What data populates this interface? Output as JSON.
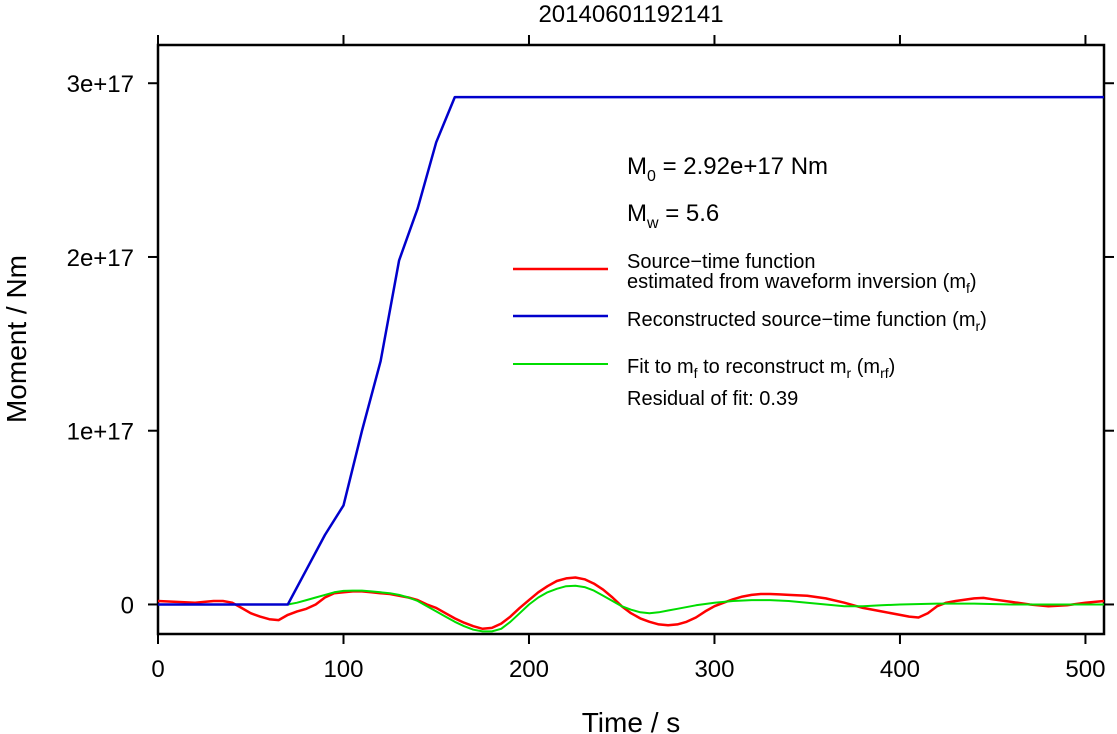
{
  "chart_data": {
    "type": "line",
    "title": "20140601192141",
    "xlabel": "Time / s",
    "ylabel": "Moment / Nm",
    "xlim": [
      0,
      510
    ],
    "ylim": [
      -1.7e+16,
      3.22e+17
    ],
    "x_ticks": [
      0,
      100,
      200,
      300,
      400,
      500
    ],
    "x_tick_labels": [
      "0",
      "100",
      "200",
      "300",
      "400",
      "500"
    ],
    "y_ticks": [
      0,
      1e+17,
      2e+17,
      3e+17
    ],
    "y_tick_labels": [
      "0",
      "1e+17",
      "2e+17",
      "3e+17"
    ],
    "grid": false,
    "legend_position": "right",
    "annotations": {
      "m0": {
        "sym": "M",
        "sub": "0",
        "text": " = 2.92e+17 Nm"
      },
      "mw": {
        "sym": "M",
        "sub": "w",
        "text": " = 5.6"
      },
      "residual": "Residual of fit: 0.39"
    },
    "series": [
      {
        "name": "Source−time function estimated from waveform inversion (m_f)",
        "legend_line1": "Source−time function",
        "legend_line2_pre": "estimated from waveform inversion (m",
        "legend_line2_sub": "f",
        "legend_line2_post": ")",
        "color": "#ff0000",
        "x": [
          0,
          10,
          20,
          30,
          35,
          40,
          45,
          50,
          55,
          60,
          65,
          70,
          75,
          80,
          85,
          90,
          95,
          100,
          105,
          110,
          115,
          120,
          125,
          130,
          135,
          140,
          145,
          150,
          155,
          160,
          165,
          170,
          175,
          180,
          185,
          190,
          195,
          200,
          205,
          210,
          215,
          220,
          225,
          230,
          235,
          240,
          245,
          250,
          255,
          260,
          265,
          270,
          275,
          280,
          285,
          290,
          295,
          300,
          305,
          310,
          315,
          320,
          325,
          330,
          335,
          340,
          350,
          360,
          370,
          380,
          390,
          400,
          405,
          410,
          415,
          420,
          425,
          430,
          440,
          445,
          450,
          460,
          470,
          480,
          490,
          500,
          510
        ],
        "values": [
          2000000000000000.0,
          1500000000000000.0,
          1000000000000000.0,
          2000000000000000.0,
          2000000000000000.0,
          1000000000000000.0,
          -2000000000000000.0,
          -5000000000000000.0,
          -7000000000000000.0,
          -8500000000000000.0,
          -9000000000000000.0,
          -6000000000000000.0,
          -4000000000000000.0,
          -2500000000000000.0,
          0,
          4000000000000000.0,
          6500000000000000.0,
          7000000000000000.0,
          7500000000000000.0,
          7500000000000000.0,
          7000000000000000.0,
          6500000000000000.0,
          6000000000000000.0,
          5000000000000000.0,
          4000000000000000.0,
          2500000000000000.0,
          0,
          -2000000000000000.0,
          -5000000000000000.0,
          -8000000000000000.0,
          -1.05e+16,
          -1.25e+16,
          -1.4e+16,
          -1.35e+16,
          -1.1e+16,
          -7000000000000000.0,
          -2000000000000000.0,
          2500000000000000.0,
          7000000000000000.0,
          1.05e+16,
          1.35e+16,
          1.5e+16,
          1.55e+16,
          1.45e+16,
          1.2e+16,
          8500000000000000.0,
          4000000000000000.0,
          -1000000000000000.0,
          -5000000000000000.0,
          -8000000000000000.0,
          -1e+16,
          -1.15e+16,
          -1.2e+16,
          -1.15e+16,
          -1e+16,
          -7500000000000000.0,
          -4000000000000000.0,
          -1000000000000000.0,
          1000000000000000.0,
          3000000000000000.0,
          4500000000000000.0,
          5500000000000000.0,
          6000000000000000.0,
          6000000000000000.0,
          5800000000000000.0,
          5500000000000000.0,
          5000000000000000.0,
          3500000000000000.0,
          1000000000000000.0,
          -2000000000000000.0,
          -4000000000000000.0,
          -6000000000000000.0,
          -7000000000000000.0,
          -7500000000000000.0,
          -5000000000000000.0,
          -1000000000000000.0,
          1000000000000000.0,
          2000000000000000.0,
          3500000000000000.0,
          3800000000000000.0,
          3000000000000000.0,
          1500000000000000.0,
          0,
          -1000000000000000.0,
          -500000000000000.0,
          1000000000000000.0,
          2000000000000000.0
        ]
      },
      {
        "name": "Reconstructed source−time function (m_r)",
        "legend_pre": "Reconstructed source−time function (m",
        "legend_sub": "r",
        "legend_post": ")",
        "color": "#0000cc",
        "x": [
          0,
          70,
          80,
          90,
          100,
          110,
          120,
          130,
          140,
          150,
          160,
          510
        ],
        "values": [
          0,
          0,
          2e+16,
          4e+16,
          5.7e+16,
          1e+17,
          1.4e+17,
          1.98e+17,
          2.28e+17,
          2.66e+17,
          2.92e+17,
          2.92e+17
        ]
      },
      {
        "name": "Fit to m_f to reconstruct m_r (m_rf)",
        "legend_pre": "Fit to m",
        "legend_sub1": "f",
        "legend_mid": " to reconstruct m",
        "legend_sub2": "r",
        "legend_mid2": " (m",
        "legend_sub3": "rf",
        "legend_post": ")",
        "color": "#00dd00",
        "x": [
          0,
          70,
          75,
          80,
          85,
          90,
          95,
          100,
          105,
          110,
          115,
          120,
          125,
          130,
          135,
          140,
          145,
          150,
          155,
          160,
          165,
          170,
          175,
          180,
          185,
          190,
          195,
          200,
          205,
          210,
          215,
          220,
          225,
          230,
          235,
          240,
          245,
          250,
          255,
          260,
          265,
          270,
          275,
          280,
          290,
          300,
          310,
          320,
          330,
          340,
          350,
          360,
          370,
          380,
          390,
          400,
          420,
          440,
          460,
          480,
          500,
          510
        ],
        "values": [
          0,
          0,
          1000000000000000.0,
          2500000000000000.0,
          4000000000000000.0,
          5500000000000000.0,
          7000000000000000.0,
          7800000000000000.0,
          8000000000000000.0,
          8000000000000000.0,
          7500000000000000.0,
          7000000000000000.0,
          6500000000000000.0,
          5500000000000000.0,
          4000000000000000.0,
          2000000000000000.0,
          -1000000000000000.0,
          -4000000000000000.0,
          -7000000000000000.0,
          -1e+16,
          -1.25e+16,
          -1.45e+16,
          -1.55e+16,
          -1.55e+16,
          -1.4e+16,
          -1e+16,
          -5000000000000000.0,
          0,
          4000000000000000.0,
          7000000000000000.0,
          9000000000000000.0,
          1.05e+16,
          1.08e+16,
          1e+16,
          8000000000000000.0,
          5000000000000000.0,
          2000000000000000.0,
          -1000000000000000.0,
          -3000000000000000.0,
          -4500000000000000.0,
          -5000000000000000.0,
          -4500000000000000.0,
          -3500000000000000.0,
          -2500000000000000.0,
          -500000000000000.0,
          1000000000000000.0,
          2000000000000000.0,
          2500000000000000.0,
          2500000000000000.0,
          2000000000000000.0,
          1000000000000000.0,
          0,
          -1000000000000000.0,
          -1000000000000000.0,
          -500000000000000.0,
          0,
          500000000000000.0,
          500000000000000.0,
          0,
          0,
          0,
          0
        ]
      }
    ]
  }
}
